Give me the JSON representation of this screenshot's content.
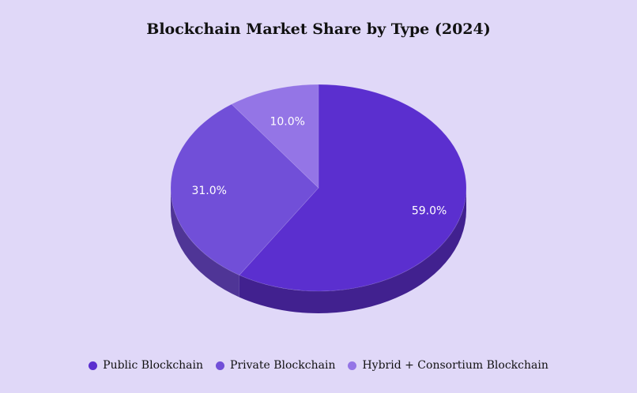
{
  "chart_data": {
    "type": "pie",
    "title": "Blockchain Market Share by Type (2024)",
    "categories": [
      "Public Blockchain",
      "Private Blockchain",
      "Hybrid + Consortium Blockchain"
    ],
    "values": [
      59.0,
      31.0,
      10.0
    ],
    "data_labels": [
      "59.0%",
      "31.0%",
      "10.0%"
    ],
    "colors": [
      "#5b2fcf",
      "#714fd8",
      "#9475e6"
    ],
    "side_colors": [
      "#41218f",
      "#4f3596",
      "#6a52a8"
    ],
    "style": "3d",
    "legend_position": "bottom"
  }
}
